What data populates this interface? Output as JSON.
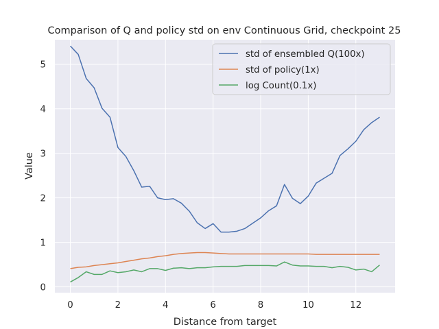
{
  "chart_data": {
    "type": "line",
    "title": "Comparison of Q and policy std on env Continuous Grid, checkpoint 25",
    "xlabel": "Distance from target",
    "ylabel": "Value",
    "xlim": [
      -0.65,
      13.65
    ],
    "ylim": [
      -0.13,
      5.55
    ],
    "xticks": [
      0,
      2,
      4,
      6,
      8,
      10,
      12
    ],
    "yticks": [
      0,
      1,
      2,
      3,
      4,
      5
    ],
    "grid": true,
    "legend_position": "top-right",
    "x": [
      0,
      0.333,
      0.667,
      1,
      1.333,
      1.667,
      2,
      2.333,
      2.667,
      3,
      3.333,
      3.667,
      4,
      4.333,
      4.667,
      5,
      5.333,
      5.667,
      6,
      6.333,
      6.667,
      7,
      7.333,
      7.667,
      8,
      8.333,
      8.667,
      9,
      9.333,
      9.667,
      10,
      10.333,
      10.667,
      11,
      11.333,
      11.667,
      12,
      12.333,
      12.667,
      13
    ],
    "series": [
      {
        "name": "std of ensembled Q(100x)",
        "color": "#4c72b0",
        "values": [
          5.41,
          5.22,
          4.68,
          4.47,
          4.01,
          3.81,
          3.13,
          2.93,
          2.61,
          2.24,
          2.26,
          2.0,
          1.96,
          1.98,
          1.88,
          1.7,
          1.44,
          1.31,
          1.42,
          1.23,
          1.23,
          1.25,
          1.31,
          1.43,
          1.55,
          1.71,
          1.82,
          2.3,
          1.99,
          1.87,
          2.04,
          2.33,
          2.44,
          2.55,
          2.95,
          3.1,
          3.27,
          3.53,
          3.69,
          3.81
        ]
      },
      {
        "name": "std of policy(1x)",
        "color": "#dd8452",
        "values": [
          0.41,
          0.44,
          0.45,
          0.48,
          0.5,
          0.52,
          0.54,
          0.57,
          0.6,
          0.63,
          0.65,
          0.68,
          0.7,
          0.73,
          0.75,
          0.76,
          0.77,
          0.77,
          0.76,
          0.75,
          0.74,
          0.74,
          0.74,
          0.74,
          0.74,
          0.74,
          0.74,
          0.74,
          0.74,
          0.74,
          0.74,
          0.73,
          0.73,
          0.73,
          0.73,
          0.73,
          0.73,
          0.73,
          0.73,
          0.73
        ]
      },
      {
        "name": "log Count(0.1x)",
        "color": "#55a868",
        "values": [
          0.11,
          0.21,
          0.34,
          0.28,
          0.28,
          0.36,
          0.32,
          0.34,
          0.38,
          0.34,
          0.41,
          0.41,
          0.37,
          0.42,
          0.43,
          0.41,
          0.43,
          0.43,
          0.45,
          0.46,
          0.46,
          0.46,
          0.48,
          0.48,
          0.48,
          0.48,
          0.47,
          0.56,
          0.49,
          0.47,
          0.47,
          0.46,
          0.46,
          0.43,
          0.46,
          0.44,
          0.38,
          0.4,
          0.34,
          0.49
        ]
      }
    ]
  },
  "style": {
    "plot_background": "#eaeaf2",
    "grid_color": "#ffffff",
    "text_color": "#262626"
  }
}
